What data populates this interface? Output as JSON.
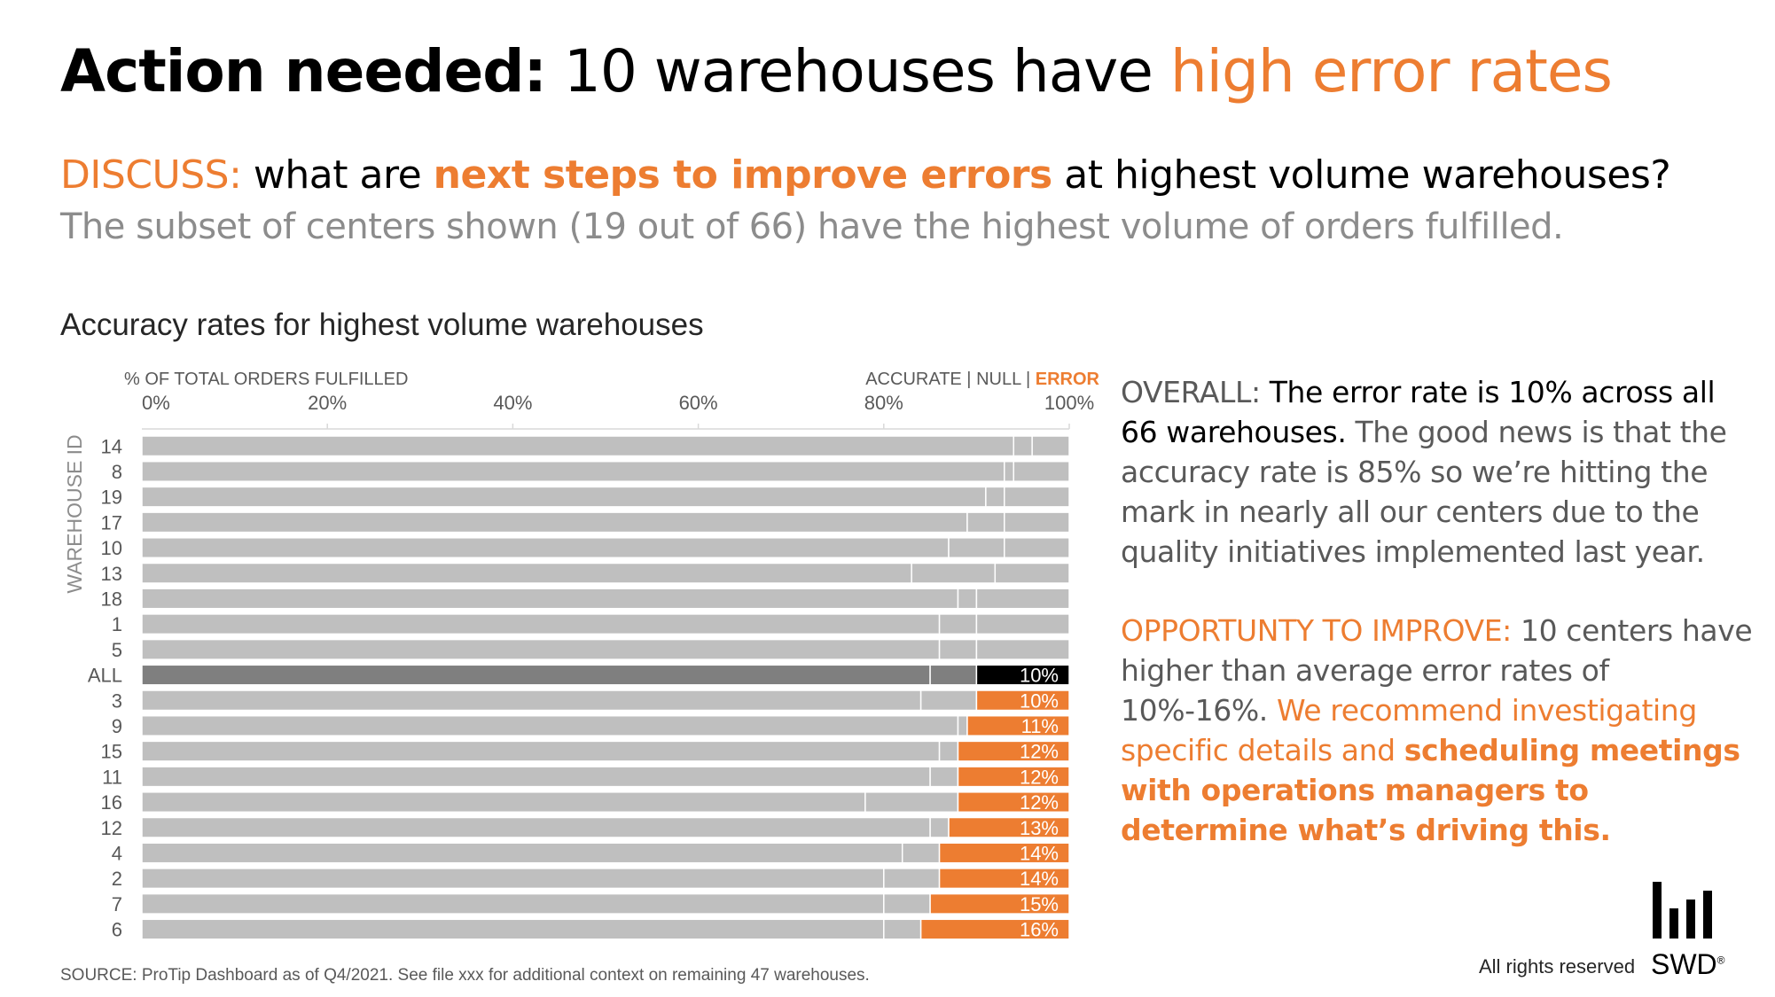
{
  "header": {
    "title_bold": "Action needed:",
    "title_regular": "10 warehouses have",
    "title_highlight": "high error rates"
  },
  "discuss": {
    "label": "DISCUSS:",
    "pre": "what are",
    "highlight": "next steps to improve errors",
    "post": "at highest volume warehouses?"
  },
  "subset_text": "The subset of centers shown (19 out of 66) have the highest volume of orders fulfilled.",
  "side_text": {
    "overall_label": "OVERALL:",
    "overall_bold": "The error rate is 10% across all 66 warehouses.",
    "overall_rest": "The good news is that the accuracy rate is 85% so we’re hitting the mark in nearly all our centers due to the quality initiatives implemented last year.",
    "opp_label": "OPPORTUNTY TO IMPROVE:",
    "opp_grey": "10 centers have higher than average error rates of 10%-16%.",
    "opp_orange": "We recommend investigating specific details and",
    "opp_bold": "scheduling meetings with operations managers to determine what’s driving this."
  },
  "source": "SOURCE: ProTip Dashboard as of Q4/2021. See file xxx for additional context on remaining 47 warehouses.",
  "footer": {
    "rights": "All rights reserved",
    "logo": "SWD",
    "reg": "®"
  },
  "colors": {
    "accurate": "#bfbfbf",
    "null": "#bfbfbf",
    "error": "#ed7d31",
    "all_accurate": "#7f7f7f",
    "all_null": "#7f7f7f",
    "all_error": "#000000",
    "tick_text": "#595959"
  },
  "chart_data": {
    "type": "bar",
    "orientation": "horizontal",
    "stacked": true,
    "title": "Accuracy rates for highest volume warehouses",
    "xlabel": "% OF TOTAL ORDERS FULFILLED",
    "ylabel": "WAREHOUSE ID",
    "xlim": [
      0,
      100
    ],
    "xticks": [
      "0%",
      "20%",
      "40%",
      "60%",
      "80%",
      "100%"
    ],
    "legend": {
      "placement": "top-right",
      "accurate": "ACCURATE",
      "null": "NULL",
      "error": "ERROR",
      "separator": " | "
    },
    "categories": [
      "14",
      "8",
      "19",
      "17",
      "10",
      "13",
      "18",
      "1",
      "5",
      "ALL",
      "3",
      "9",
      "15",
      "11",
      "16",
      "12",
      "4",
      "2",
      "7",
      "6"
    ],
    "series": [
      {
        "name": "Accurate",
        "values": [
          94,
          93,
          91,
          89,
          87,
          83,
          88,
          86,
          86,
          85,
          84,
          88,
          86,
          85,
          78,
          85,
          82,
          80,
          80,
          80
        ]
      },
      {
        "name": "Null",
        "values": [
          2,
          1,
          2,
          4,
          6,
          9,
          2,
          4,
          4,
          5,
          6,
          1,
          2,
          3,
          10,
          2,
          4,
          6,
          5,
          4
        ]
      },
      {
        "name": "Error",
        "values": [
          4,
          6,
          7,
          7,
          7,
          8,
          10,
          10,
          10,
          10,
          10,
          11,
          12,
          12,
          12,
          13,
          14,
          14,
          15,
          16
        ]
      }
    ],
    "data_labels": {
      "ALL": "10%",
      "3": "10%",
      "9": "11%",
      "15": "12%",
      "11": "12%",
      "16": "12%",
      "12": "13%",
      "4": "14%",
      "2": "14%",
      "7": "15%",
      "6": "16%"
    },
    "highlight_category": "ALL"
  }
}
